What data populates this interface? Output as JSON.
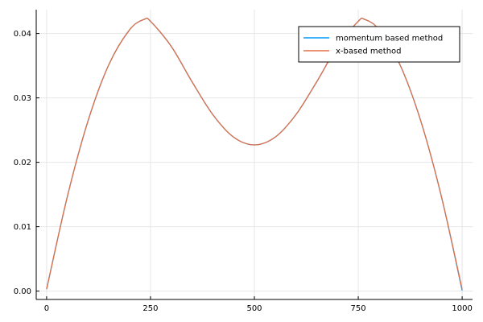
{
  "chart_data": {
    "type": "line",
    "title": "",
    "xlabel": "",
    "ylabel": "",
    "xlim": [
      -25,
      1025
    ],
    "ylim": [
      -0.0013,
      0.0437
    ],
    "x_ticks": [
      0,
      250,
      500,
      750,
      1000
    ],
    "x_tick_labels": [
      "0",
      "250",
      "500",
      "750",
      "1000"
    ],
    "y_ticks": [
      0.0,
      0.01,
      0.02,
      0.03,
      0.04
    ],
    "y_tick_labels": [
      "0.00",
      "0.01",
      "0.02",
      "0.03",
      "0.04"
    ],
    "grid": true,
    "legend_position": "top-right",
    "x": [
      0,
      50,
      100,
      150,
      200,
      235,
      250,
      300,
      350,
      400,
      450,
      500,
      550,
      600,
      650,
      700,
      750,
      765,
      800,
      850,
      900,
      950,
      1000
    ],
    "series": [
      {
        "name": "momentum based method",
        "color": "#009af9",
        "values": [
          0.0003,
          0.0147,
          0.0265,
          0.0352,
          0.0406,
          0.0422,
          0.0419,
          0.038,
          0.0325,
          0.0274,
          0.0239,
          0.0227,
          0.0239,
          0.0274,
          0.0325,
          0.038,
          0.0419,
          0.0422,
          0.0406,
          0.0352,
          0.0265,
          0.0147,
          0.0001
        ]
      },
      {
        "name": "x-based method",
        "color": "#e26f46",
        "values": [
          0.0003,
          0.0147,
          0.0265,
          0.0352,
          0.0406,
          0.0422,
          0.0419,
          0.038,
          0.0325,
          0.0274,
          0.0239,
          0.0227,
          0.0239,
          0.0274,
          0.0325,
          0.038,
          0.0419,
          0.0422,
          0.0406,
          0.0352,
          0.0265,
          0.0147,
          0.0003
        ]
      }
    ]
  }
}
